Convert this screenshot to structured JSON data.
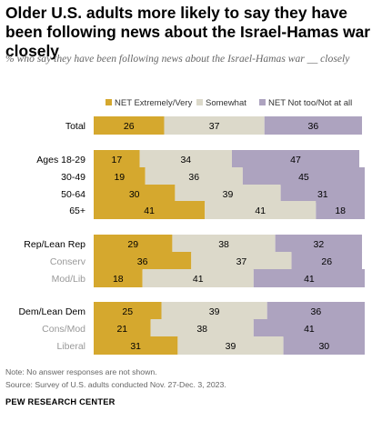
{
  "title": "Older U.S. adults more likely to say they have been following news about the Israel-Hamas war closely",
  "subtitle": "% who say they have been following news about the Israel-Hamas war __ closely",
  "note": "Note: No answer responses are not shown.",
  "source": "Source: Survey of U.S. adults conducted Nov. 27-Dec. 3, 2023.",
  "organization": "PEW RESEARCH CENTER",
  "chart_data": {
    "type": "bar",
    "orientation": "horizontal",
    "stacked": true,
    "legend_position": "top",
    "grid": false,
    "xlim": [
      0,
      100
    ],
    "categories": [
      "Total",
      "Ages 18-29",
      "30-49",
      "50-64",
      "65+",
      "Rep/Lean Rep",
      "Conserv",
      "Mod/Lib",
      "Dem/Lean Dem",
      "Cons/Mod",
      "Liberal"
    ],
    "category_style": [
      "main",
      "main",
      "main",
      "main",
      "main",
      "main",
      "sub",
      "sub",
      "main",
      "sub",
      "sub"
    ],
    "series": [
      {
        "name": "NET Extremely/Very",
        "color": "#d5a82e",
        "values": [
          26,
          17,
          19,
          30,
          41,
          29,
          36,
          18,
          25,
          21,
          31
        ]
      },
      {
        "name": "Somewhat",
        "color": "#dcd9ca",
        "values": [
          37,
          34,
          36,
          39,
          41,
          38,
          37,
          41,
          39,
          38,
          39
        ]
      },
      {
        "name": "NET Not too/Not at all",
        "color": "#ada3bf",
        "values": [
          36,
          47,
          45,
          31,
          18,
          32,
          26,
          41,
          36,
          41,
          30
        ]
      }
    ]
  }
}
